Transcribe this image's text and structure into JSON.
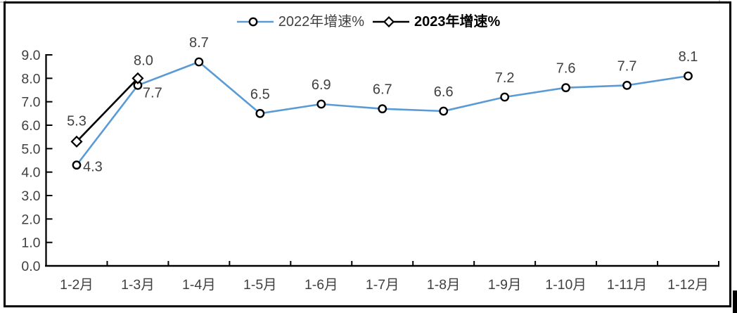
{
  "chart_data": {
    "type": "line",
    "title": "",
    "xlabel": "",
    "ylabel": "",
    "categories": [
      "1-2月",
      "1-3月",
      "1-4月",
      "1-5月",
      "1-6月",
      "1-7月",
      "1-8月",
      "1-9月",
      "1-10月",
      "1-11月",
      "1-12月"
    ],
    "series": [
      {
        "name": "2022年增速%",
        "values": [
          4.3,
          7.7,
          8.7,
          6.5,
          6.9,
          6.7,
          6.6,
          7.2,
          7.6,
          7.7,
          8.1
        ],
        "color": "#5b9bd5",
        "marker": "circle"
      },
      {
        "name": "2023年增速%",
        "values": [
          5.3,
          8.0
        ],
        "color": "#000000",
        "marker": "diamond"
      }
    ],
    "ylim": [
      0.0,
      9.0
    ],
    "ytick_step": 1.0,
    "ytick_labels": [
      "0.0",
      "1.0",
      "2.0",
      "3.0",
      "4.0",
      "5.0",
      "6.0",
      "7.0",
      "8.0",
      "9.0"
    ],
    "grid": false,
    "data_labels": true,
    "legend_position": "top-center",
    "axis_color": "#000000",
    "tick_label_color": "#404040",
    "data_label_color": "#404040",
    "marker_stroke_color": "#000000",
    "marker_fill_color": "#ffffff"
  },
  "legend": {
    "items": [
      {
        "label": "2022年增速%",
        "color": "#5b9bd5",
        "marker": "circle",
        "text_color": "#404040"
      },
      {
        "label": "2023年增速%",
        "color": "#000000",
        "marker": "diamond",
        "text_color": "#000000"
      }
    ]
  }
}
